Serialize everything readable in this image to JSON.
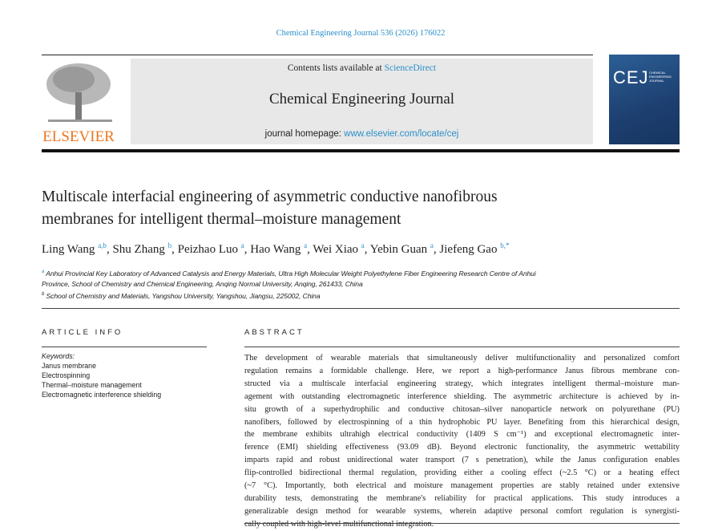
{
  "journal_ref": "Chemical Engineering Journal 536 (2026) 176022",
  "header": {
    "contents_prefix": "Contents lists available at ",
    "contents_link": "ScienceDirect",
    "journal_title": "Chemical Engineering Journal",
    "homepage_prefix": "journal homepage: ",
    "homepage_link": "www.elsevier.com/locate/cej",
    "publisher": "ELSEVIER",
    "cover_logo": "CEJ",
    "cover_subtitle": "CHEMICAL ENGINEERING JOURNAL"
  },
  "title_lines": [
    "Multiscale interfacial engineering of asymmetric conductive nanofibrous",
    "membranes for intelligent thermal–moisture management"
  ],
  "authors": [
    {
      "name": "Ling Wang",
      "aff": "a,b"
    },
    {
      "name": "Shu Zhang",
      "aff": "b"
    },
    {
      "name": "Peizhao Luo",
      "aff": "a"
    },
    {
      "name": "Hao Wang",
      "aff": "a"
    },
    {
      "name": "Wei Xiao",
      "aff": "a"
    },
    {
      "name": "Yebin Guan",
      "aff": "a"
    },
    {
      "name": "Jiefeng Gao",
      "aff": "b,*"
    }
  ],
  "affiliations": [
    {
      "mark": "a",
      "lines": [
        "Anhui Provincial Key Laboratory of Advanced Catalysis and Energy Materials, Ultra High Molecular Weight Polyethylene Fiber Engineering Research Centre of Anhui",
        "Province, School of Chemistry and Chemical Engineering, Anqing Normal University, Anqing, 261433, China"
      ]
    },
    {
      "mark": "b",
      "lines": [
        "School of Chemistry and Materials, Yangshou University, Yangshou, Jiangsu, 225002, China"
      ]
    }
  ],
  "article_info": {
    "heading": "ARTICLE INFO",
    "keywords_label": "Keywords:",
    "keywords": [
      "Janus membrane",
      "Electrospinning",
      "Thermal–moisture management",
      "Electromagnetic interference shielding"
    ]
  },
  "abstract": {
    "heading": "ABSTRACT",
    "lines": [
      "The development of wearable materials that simultaneously deliver multifunctionality and personalized comfort",
      "regulation remains a formidable challenge. Here, we report a high-performance Janus fibrous membrane con-",
      "structed via a multiscale interfacial engineering strategy, which integrates intelligent thermal–moisture man-",
      "agement with outstanding electromagnetic interference shielding. The asymmetric architecture is achieved by in-",
      "situ growth of a superhydrophilic and conductive chitosan–silver nanoparticle network on polyurethane (PU)",
      "nanofibers, followed by electrospinning of a thin hydrophobic PU layer. Benefiting from this hierarchical design,",
      "the membrane exhibits ultrahigh electrical conductivity (1409 S cm⁻¹) and exceptional electromagnetic inter-",
      "ference (EMI) shielding effectiveness (93.09 dB). Beyond electronic functionality, the asymmetric wettability",
      "imparts rapid and robust unidirectional water transport (7 s penetration), while the Janus configuration enables",
      "flip-controlled bidirectional thermal regulation, providing either a cooling effect (~2.5 °C) or a heating effect",
      "(~7 °C). Importantly, both electrical and moisture management properties are stably retained under extensive",
      "durability tests, demonstrating the membrane's reliability for practical applications. This study introduces a",
      "generalizable design method for wearable systems, wherein adaptive personal comfort regulation is synergisti-",
      "cally coupled with high-level multifunctional integration."
    ]
  }
}
